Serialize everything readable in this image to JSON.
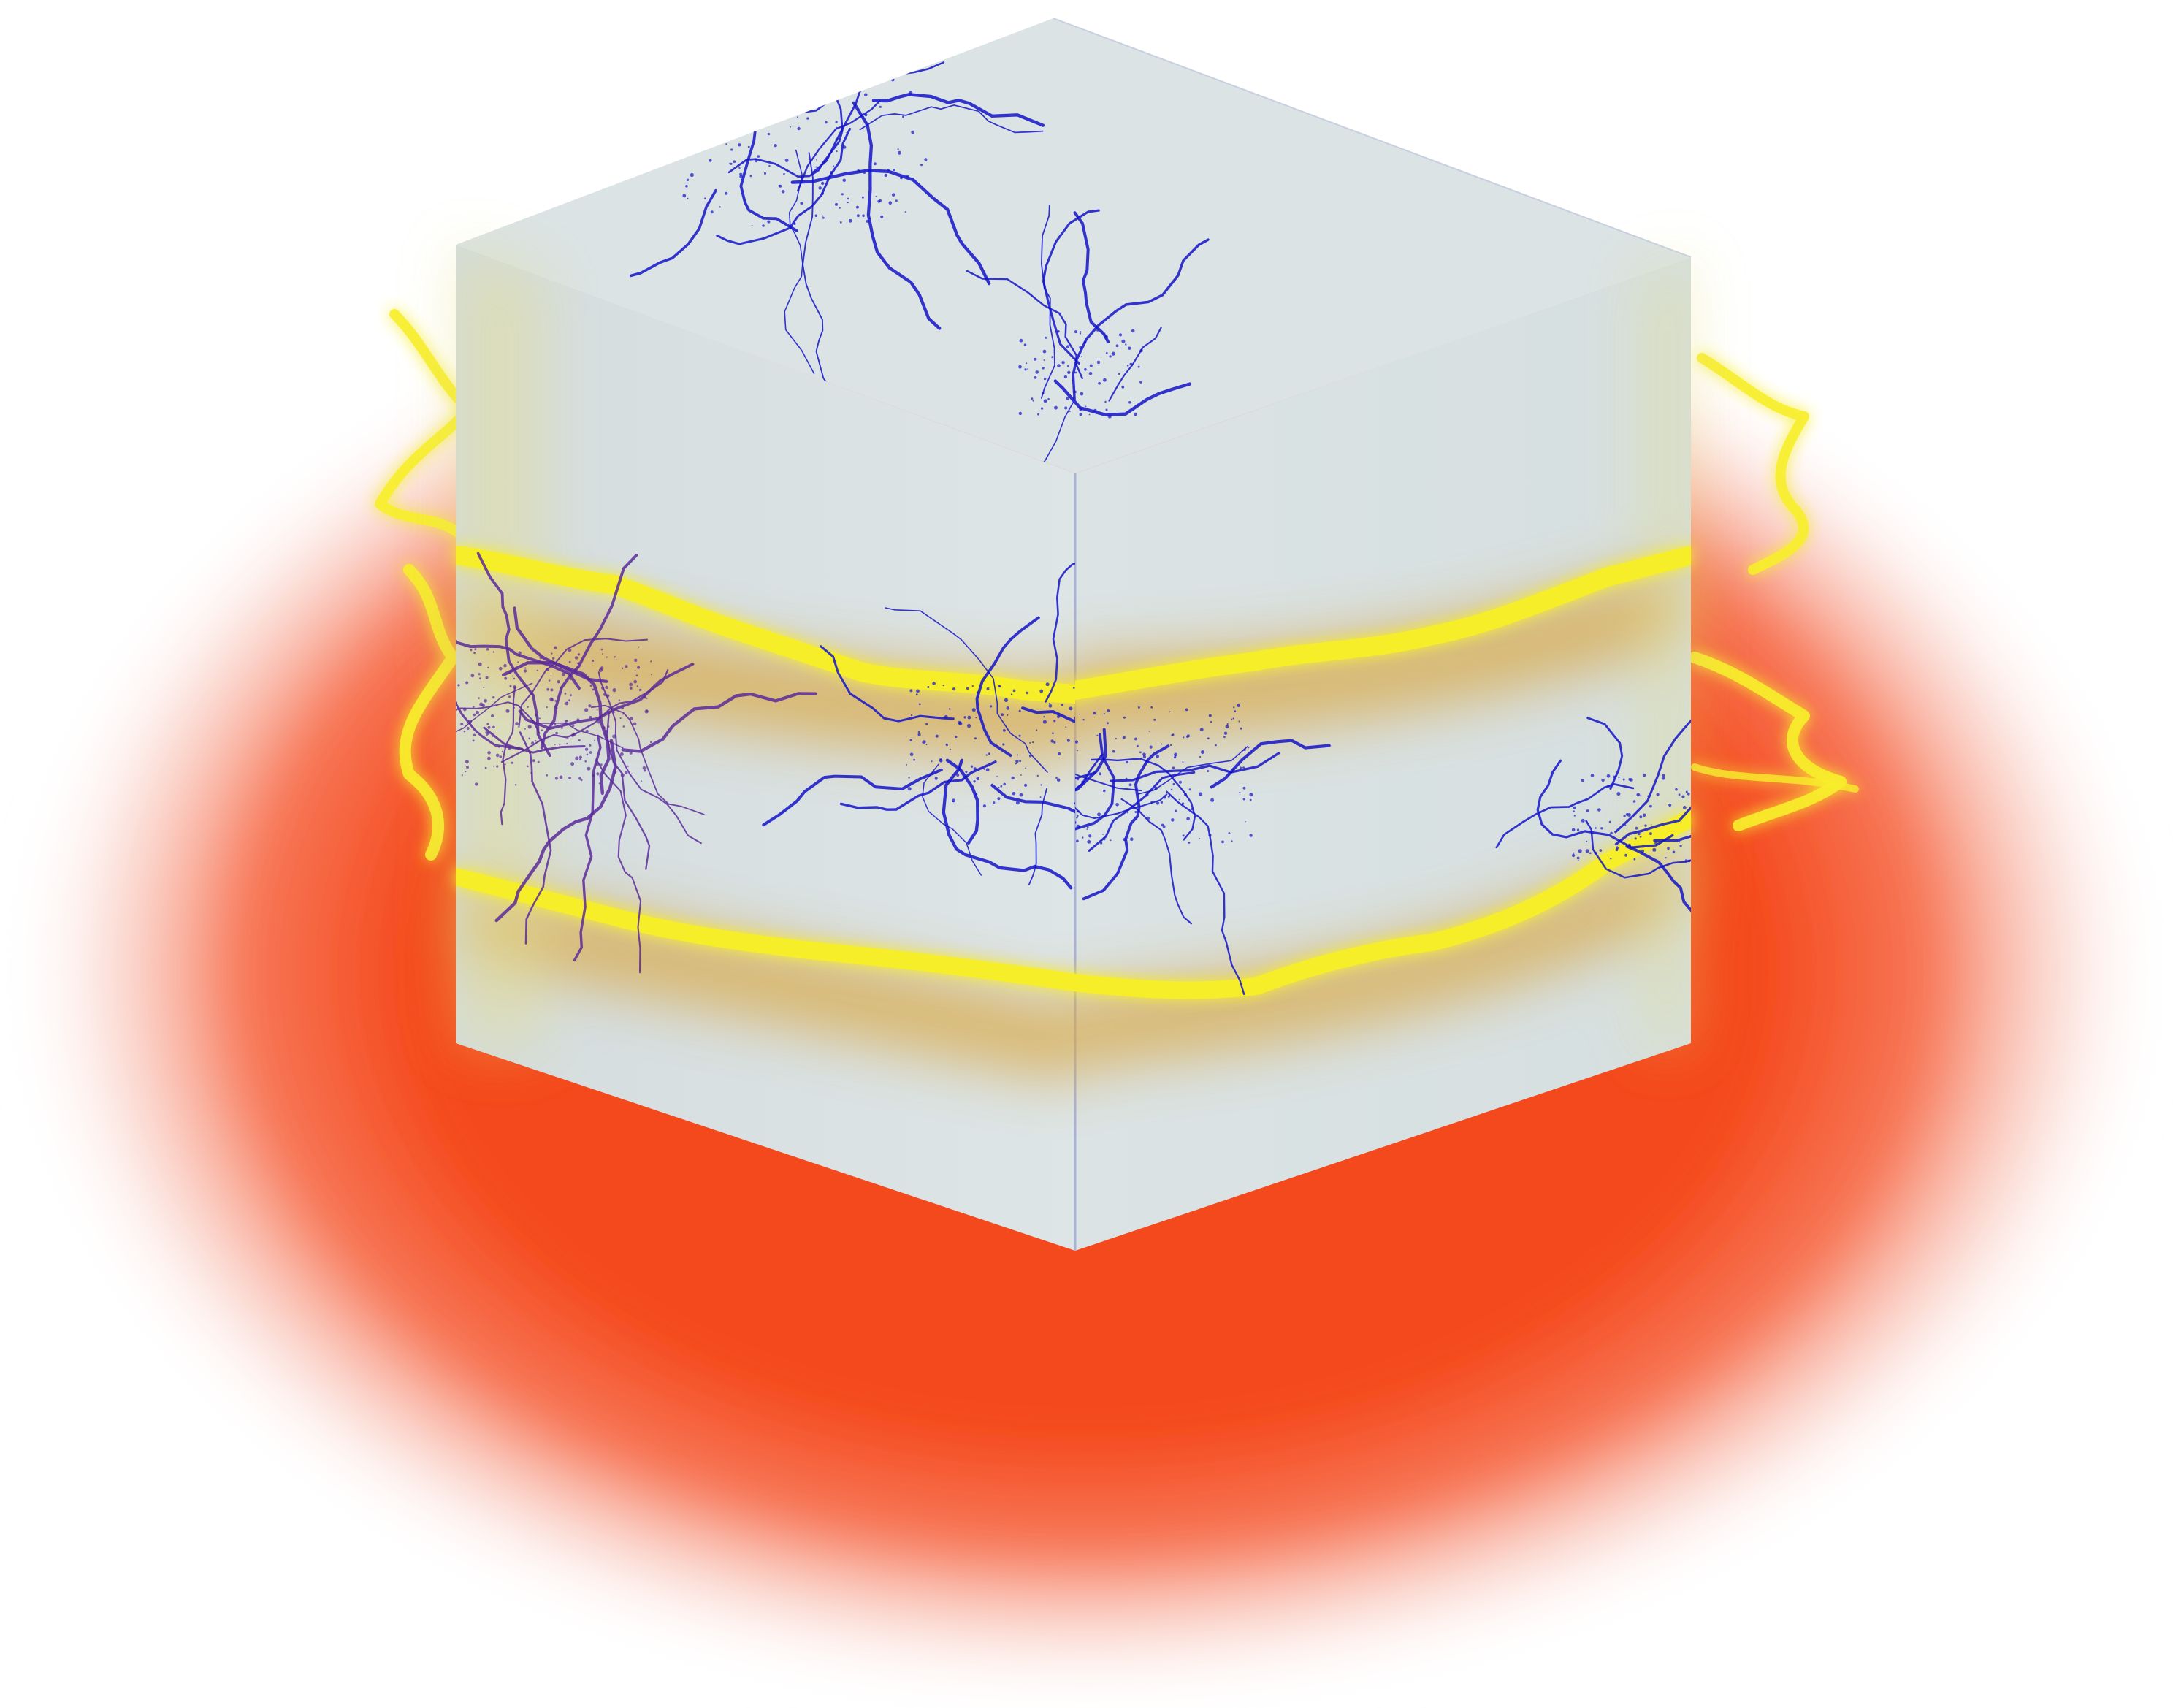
{
  "image": {
    "description_free": true,
    "colors": {
      "background": "#ffffff",
      "halo_orange": "#f4481b",
      "halo_red_fade": "#f7b7a8",
      "band_yellow": "#f7ee2a",
      "band_amber": "#d8a640",
      "cube_face": "#d9e2e3",
      "cube_edge": "#a9b2d8",
      "crack_blue": "#1414c8",
      "crack_purple": "#5a2a9a"
    },
    "elements": [
      "heat-halo",
      "fracture-cube",
      "yellow-fracture-bands",
      "blue-crack-network"
    ]
  }
}
